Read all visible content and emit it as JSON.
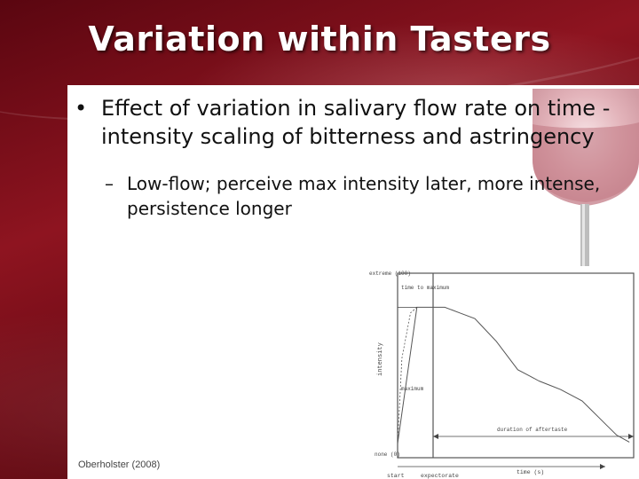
{
  "slide": {
    "title": "Variation within Tasters",
    "bullet_1": {
      "marker": "•",
      "text": "Effect of variation in salivary flow rate on time -intensity scaling of bitterness and astringency"
    },
    "bullet_2": {
      "marker": "–",
      "text": "Low-flow; perceive max intensity later, more intense, persistence longer"
    },
    "citation": "Oberholster (2008)"
  },
  "chart_data": {
    "type": "line",
    "xlabel": "time (s)",
    "ylabel": "intensity",
    "y_tick_labels": [
      "extreme (100)",
      "none (0)"
    ],
    "x_tick_labels": [
      "start",
      "expectorate"
    ],
    "annotations": [
      "time to maximum",
      "maximum",
      "duration of aftertaste"
    ],
    "series": [
      {
        "values": [
          [
            0,
            0
          ],
          [
            0.9,
            96
          ],
          [
            2.2,
            96
          ],
          [
            3.6,
            88
          ],
          [
            4.6,
            72
          ],
          [
            5.6,
            52
          ],
          [
            6.6,
            44
          ],
          [
            7.6,
            38
          ],
          [
            8.6,
            30
          ],
          [
            9.4,
            18
          ],
          [
            10.2,
            6
          ],
          [
            10.8,
            1
          ]
        ]
      },
      {
        "values": [
          [
            0,
            0
          ],
          [
            0.2,
            60
          ],
          [
            0.6,
            92
          ],
          [
            0.9,
            96
          ]
        ]
      }
    ],
    "colors": {
      "curve": "#555555",
      "axis": "#444444"
    }
  }
}
